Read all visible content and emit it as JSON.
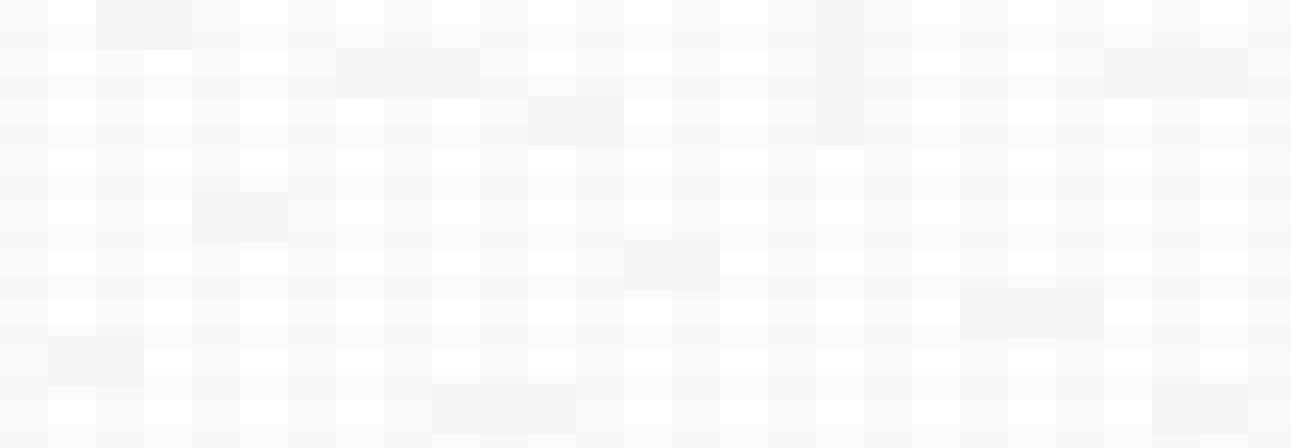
{
  "page": {
    "background_color": "#ffffff",
    "pattern_color": "#f5f5f7"
  }
}
